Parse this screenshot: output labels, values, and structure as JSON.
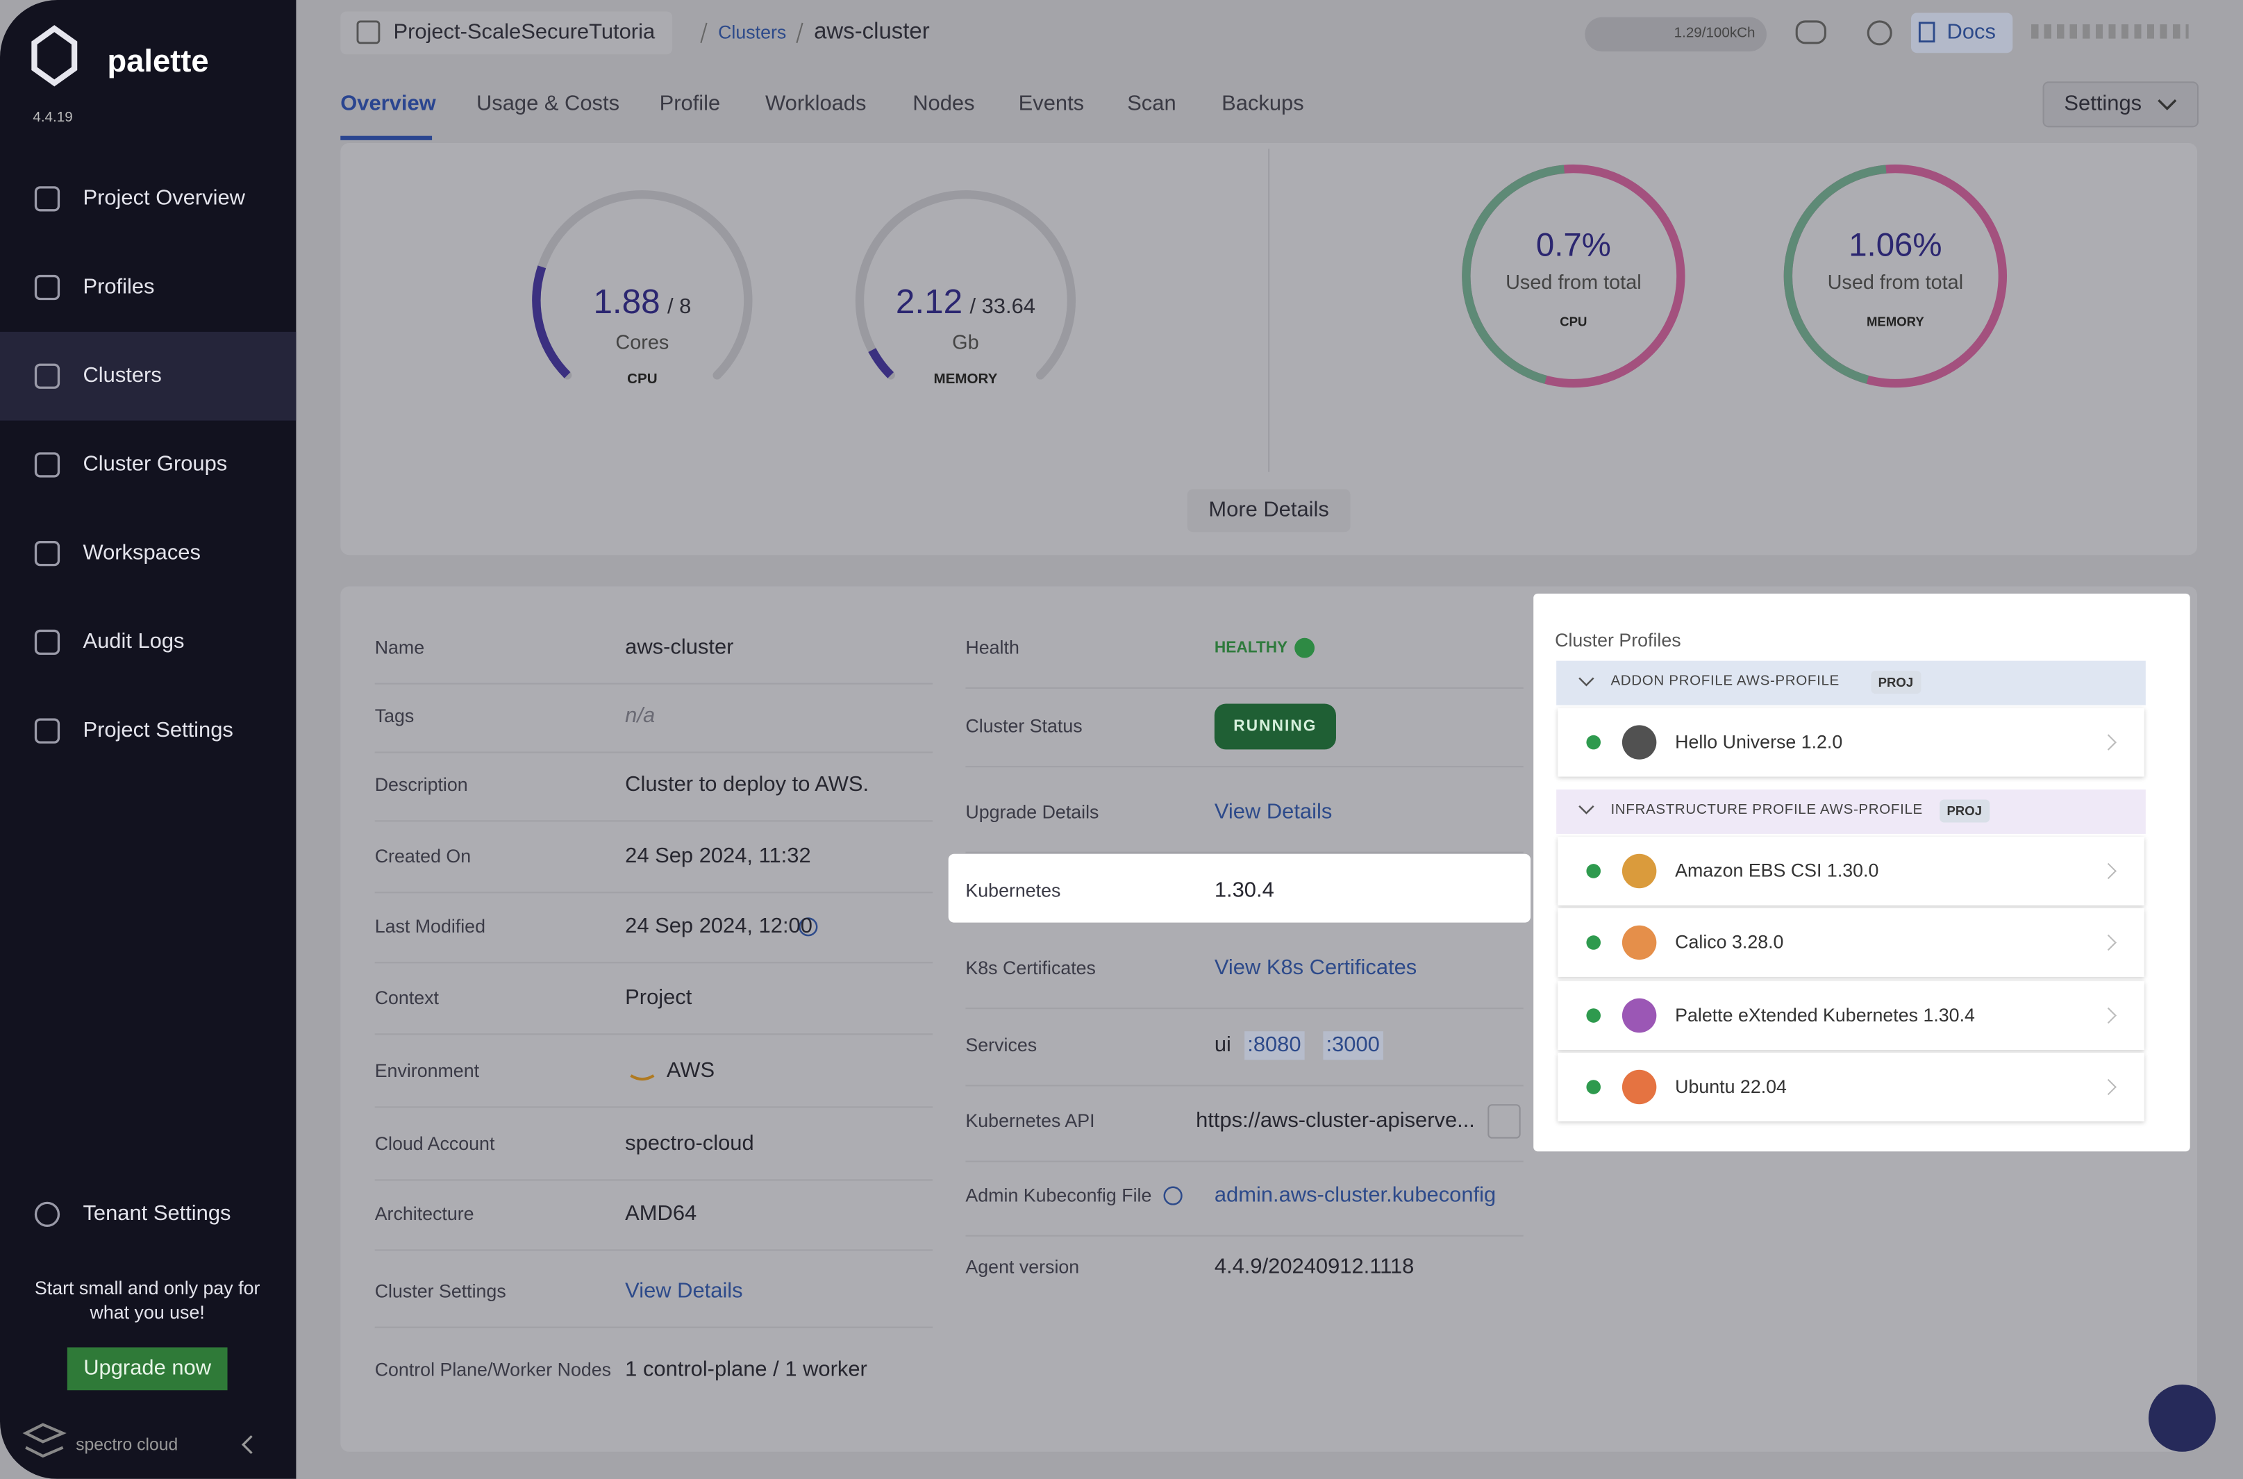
{
  "sidebar": {
    "brand": "palette",
    "version": "4.4.19",
    "nav": [
      "Project Overview",
      "Profiles",
      "Clusters",
      "Cluster Groups",
      "Workspaces",
      "Audit Logs",
      "Project Settings"
    ],
    "tenant": "Tenant Settings",
    "promo": "Start small and only pay for what you use!",
    "upgrade": "Upgrade now",
    "footer": "spectro cloud"
  },
  "header": {
    "project": "Project-ScaleSecureTutoria",
    "breadcrumb": [
      "Clusters",
      "aws-cluster"
    ],
    "usage": "1.29/100kCh",
    "docs": "Docs",
    "tabs": [
      "Overview",
      "Usage & Costs",
      "Profile",
      "Workloads",
      "Nodes",
      "Events",
      "Scan",
      "Backups"
    ],
    "settings": "Settings"
  },
  "usage": {
    "gauges": [
      {
        "value": "1.88",
        "total": "/ 8",
        "unit": "Cores",
        "label": "CPU"
      },
      {
        "value": "2.12",
        "total": "/ 33.64",
        "unit": "Gb",
        "label": "MEMORY"
      }
    ],
    "rings": [
      {
        "value": "0.7%",
        "caption": "Used from total",
        "label": "CPU"
      },
      {
        "value": "1.06%",
        "caption": "Used from total",
        "label": "MEMORY"
      }
    ],
    "more": "More Details"
  },
  "details": {
    "left": [
      {
        "label": "Name",
        "value": "aws-cluster"
      },
      {
        "label": "Tags",
        "value": "n/a"
      },
      {
        "label": "Description",
        "value": "Cluster to deploy to AWS."
      },
      {
        "label": "Created On",
        "value": "24 Sep 2024, 11:32"
      },
      {
        "label": "Last Modified",
        "value": "24 Sep 2024, 12:00"
      },
      {
        "label": "Context",
        "value": "Project"
      },
      {
        "label": "Environment",
        "value": "AWS"
      },
      {
        "label": "Cloud Account",
        "value": "spectro-cloud"
      },
      {
        "label": "Architecture",
        "value": "AMD64"
      },
      {
        "label": "Cluster Settings",
        "value": "View Details"
      },
      {
        "label": "Control Plane/Worker Nodes",
        "value": "1 control-plane / 1 worker"
      }
    ],
    "right": [
      {
        "label": "Health",
        "value": "HEALTHY"
      },
      {
        "label": "Cluster Status",
        "value": "RUNNING"
      },
      {
        "label": "Upgrade Details",
        "value": "View Details"
      },
      {
        "label": "Kubernetes",
        "value": "1.30.4"
      },
      {
        "label": "K8s Certificates",
        "value": "View K8s Certificates"
      },
      {
        "label": "Services",
        "values": [
          "ui",
          ":8080",
          ":3000"
        ]
      },
      {
        "label": "Kubernetes API",
        "value": "https://aws-cluster-apiserve..."
      },
      {
        "label": "Admin Kubeconfig File",
        "value": "admin.aws-cluster.kubeconfig"
      },
      {
        "label": "Agent version",
        "value": "4.4.9/20240912.1118"
      }
    ]
  },
  "profiles": {
    "title": "Cluster Profiles",
    "groups": [
      {
        "name": "ADDON PROFILE AWS-PROFILE",
        "tag": "PROJ",
        "packs": [
          "Hello Universe 1.2.0"
        ]
      },
      {
        "name": "INFRASTRUCTURE PROFILE AWS-PROFILE",
        "tag": "PROJ",
        "packs": [
          "Amazon EBS CSI 1.30.0",
          "Calico 3.28.0",
          "Palette eXtended Kubernetes 1.30.4",
          "Ubuntu 22.04"
        ]
      }
    ]
  }
}
